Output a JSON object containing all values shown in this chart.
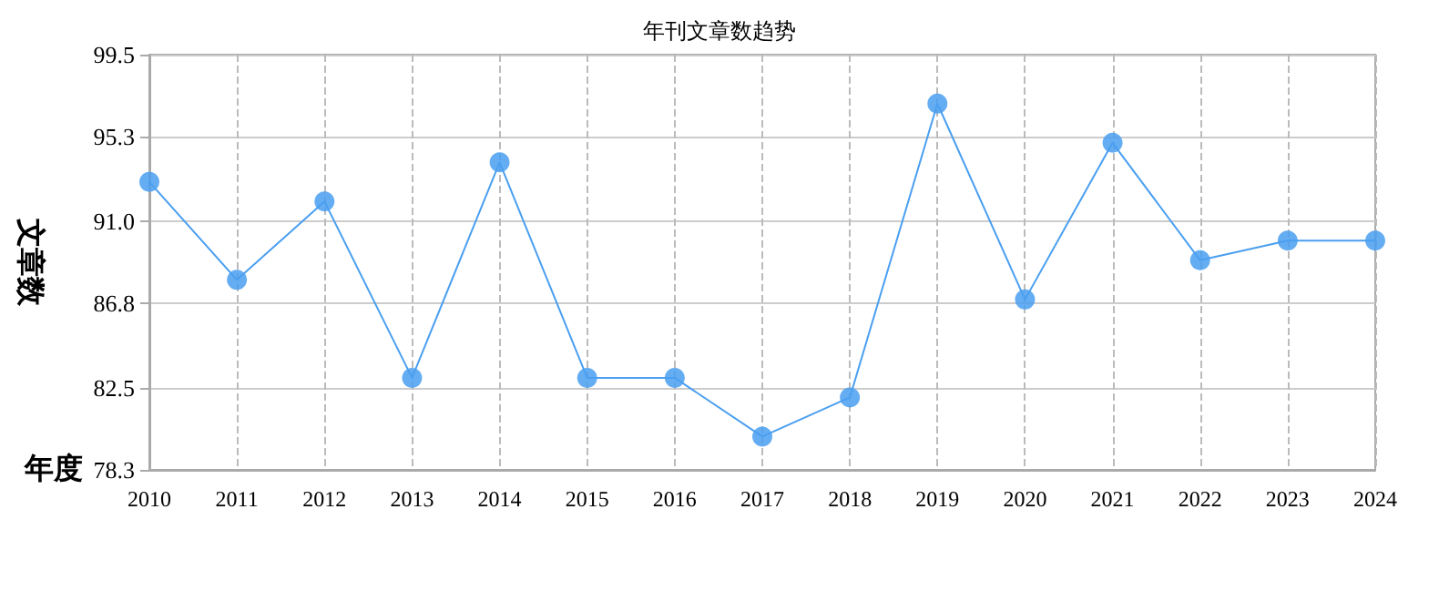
{
  "chart_data": {
    "type": "line",
    "title": "年刊文章数趋势",
    "xlabel": "年度",
    "ylabel": "文章数",
    "categories": [
      "2010",
      "2011",
      "2012",
      "2013",
      "2014",
      "2015",
      "2016",
      "2017",
      "2018",
      "2019",
      "2020",
      "2021",
      "2022",
      "2023",
      "2024"
    ],
    "series": [
      {
        "color": "#4a9ff0",
        "values": [
          93,
          88,
          92,
          83,
          94,
          83,
          83,
          80,
          82,
          97,
          87,
          95,
          89,
          90,
          90
        ]
      }
    ],
    "ylim": [
      78.3,
      99.5
    ],
    "yticks": [
      78.3,
      82.5,
      86.8,
      {
        "value": 91,
        "label": "91.0"
      },
      95.3,
      99.5
    ],
    "grid": true,
    "marker": "circle",
    "line_style": "solid"
  }
}
